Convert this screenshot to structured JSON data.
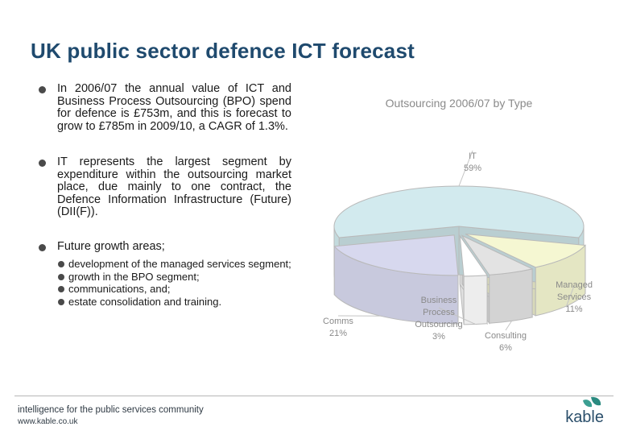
{
  "slide": {
    "title": "UK public sector defence ICT forecast",
    "bullets": [
      "In 2006/07 the annual value of ICT and Business Process Outsourcing (BPO) spend for defence is £753m, and this is forecast to grow to £785m in 2009/10, a CAGR of 1.3%.",
      "IT represents the largest segment by expenditure within the outsourcing market place, due mainly to one contract, the Defence Information Infrastructure (Future) (DII(F)).",
      "Future growth areas;"
    ],
    "sub_bullets": [
      "development of the managed services segment;",
      "growth in the BPO segment;",
      "communications, and;",
      "estate consolidation and training."
    ]
  },
  "footer": {
    "tagline": "intelligence for the public services community",
    "url": "www.kable.co.uk",
    "logo": "kable"
  },
  "chart_data": {
    "type": "pie",
    "title": "Outsourcing 2006/07 by Type",
    "slices": [
      {
        "label": "IT",
        "value": 59,
        "display": "59%",
        "color": "#d2eaee"
      },
      {
        "label": "Managed Services",
        "value": 11,
        "display": "11%",
        "color": "#f5f7d2"
      },
      {
        "label": "Consulting",
        "value": 6,
        "display": "6%",
        "color": "#e3e3e3"
      },
      {
        "label": "Business Process Outsourcing",
        "value": 3,
        "display": "3%",
        "color": "#ffffff"
      },
      {
        "label": "Comms",
        "value": 21,
        "display": "21%",
        "color": "#d7d8ee"
      }
    ],
    "style": "3d-exploded"
  }
}
